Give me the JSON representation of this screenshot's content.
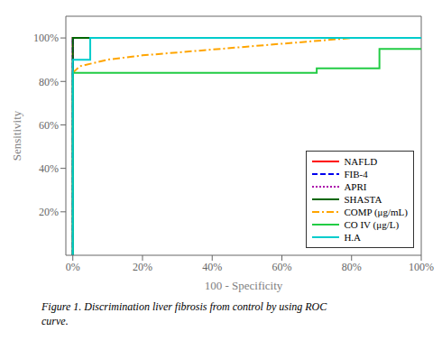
{
  "chart_data": {
    "type": "line",
    "xlabel": "100 - Specificity",
    "ylabel": "Sensitivity",
    "annotations": [
      "Figure 1. Discrimination liver fibrosis from control by using ROC",
      "curve."
    ],
    "xlim": [
      -2,
      100
    ],
    "ylim": [
      0,
      110
    ],
    "xticks": [
      {
        "value": 0,
        "label": "0%"
      },
      {
        "value": 20,
        "label": "20%"
      },
      {
        "value": 40,
        "label": "40%"
      },
      {
        "value": 60,
        "label": "60%"
      },
      {
        "value": 80,
        "label": "80%"
      },
      {
        "value": 100,
        "label": "100%"
      }
    ],
    "yticks": [
      {
        "value": 20,
        "label": "20%"
      },
      {
        "value": 40,
        "label": "40%"
      },
      {
        "value": 60,
        "label": "60%"
      },
      {
        "value": 80,
        "label": "80%"
      },
      {
        "value": 100,
        "label": "100%"
      }
    ],
    "grid": false,
    "legend": "lower right",
    "series": [
      {
        "name": "NAFLD",
        "color": "#FF0000",
        "line_style": "solid",
        "x": [
          0,
          0,
          100
        ],
        "values": [
          0,
          100,
          100
        ]
      },
      {
        "name": "FIB-4",
        "color": "#0000EE",
        "line_style": "dashed",
        "x": [
          0,
          0,
          100
        ],
        "values": [
          0,
          100,
          100
        ]
      },
      {
        "name": "APRI",
        "color": "#AA00AA",
        "line_style": "dotted",
        "x": [
          0,
          0,
          100
        ],
        "values": [
          0,
          100,
          100
        ]
      },
      {
        "name": "SHASTA",
        "color": "#006600",
        "line_style": "solid",
        "x": [
          0,
          0,
          100
        ],
        "values": [
          0,
          100,
          100
        ]
      },
      {
        "name": "COMP (μg/mL)",
        "color": "#FFA500",
        "line_style": "dashdot",
        "x": [
          0,
          2,
          10,
          20,
          35,
          50,
          65,
          80,
          100
        ],
        "values": [
          84,
          87,
          90,
          92,
          94,
          96,
          98,
          100,
          100
        ]
      },
      {
        "name": "CO IV (μg/L)",
        "color": "#22CC44",
        "line_style": "solid",
        "x": [
          0,
          0,
          70,
          70,
          88,
          88,
          100
        ],
        "values": [
          0,
          84,
          84,
          86,
          86,
          95,
          95
        ]
      },
      {
        "name": "H.A",
        "color": "#00CCCC",
        "line_style": "solid",
        "x": [
          0,
          0,
          5,
          5,
          100
        ],
        "values": [
          0,
          90,
          90,
          100,
          100
        ]
      }
    ]
  }
}
